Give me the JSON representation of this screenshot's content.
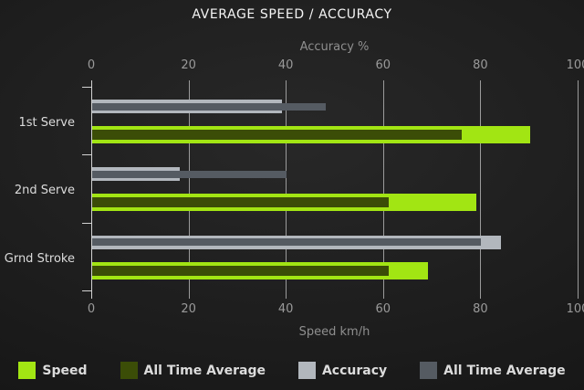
{
  "title": "AVERAGE SPEED / ACCURACY",
  "chart_data": {
    "type": "bar",
    "orientation": "horizontal",
    "grid": true,
    "legend_position": "bottom",
    "categories": [
      "1st Serve",
      "2nd Serve",
      "Grnd Stroke"
    ],
    "series": [
      {
        "name": "Speed",
        "axis": "bottom",
        "color": "#a2e513",
        "values": [
          90,
          79,
          69
        ]
      },
      {
        "name": "All Time Average",
        "axis": "bottom",
        "color": "#3b4d07",
        "values": [
          76,
          61,
          61
        ]
      },
      {
        "name": "Accuracy",
        "axis": "top",
        "color": "#b2b7bd",
        "values": [
          39,
          18,
          84
        ]
      },
      {
        "name": "All Time Average",
        "axis": "top",
        "color": "#555b62",
        "values": [
          48,
          40,
          80
        ]
      }
    ],
    "top_axis": {
      "label": "Accuracy %",
      "ticks": [
        0,
        20,
        40,
        60,
        80,
        100
      ],
      "range": [
        0,
        100
      ]
    },
    "bottom_axis": {
      "label": "Speed km/h",
      "ticks": [
        0,
        20,
        40,
        60,
        80,
        100
      ],
      "range": [
        0,
        100
      ]
    }
  },
  "colors": {
    "background": "#1c1c1c",
    "title_text": "#f4f4f4",
    "axis_text": "#9a9a9a",
    "gridline": "#9b9b9b",
    "legend_text": "#dcdcdc"
  }
}
